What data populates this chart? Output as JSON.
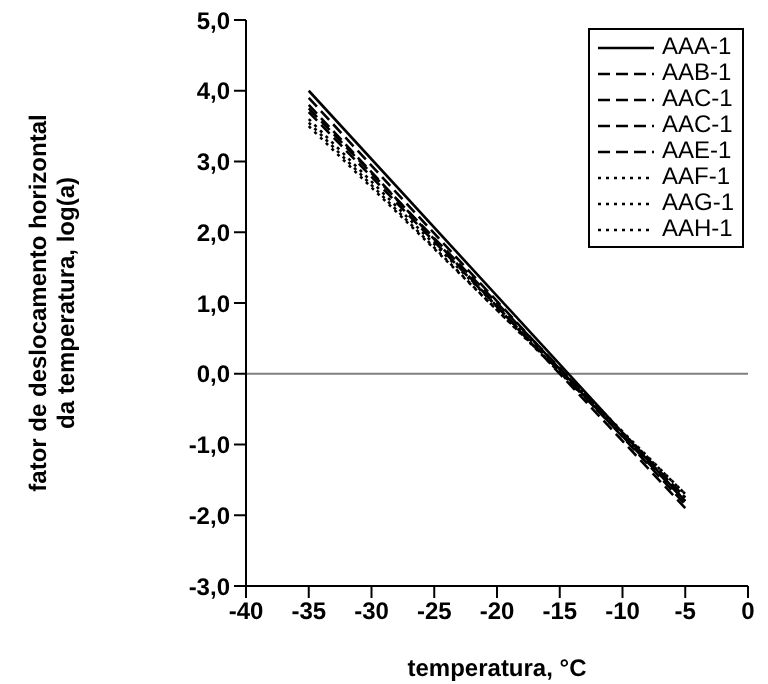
{
  "chart_data": {
    "type": "line",
    "xlabel": "temperatura, °C",
    "ylabel": "fator de deslocamento horizontal\nda temperatura, log(a)",
    "x": [
      -35,
      -5
    ],
    "series": [
      {
        "name": "AAA-1",
        "color": "#000000",
        "line_style": "solid",
        "values": [
          4.0,
          -1.8
        ]
      },
      {
        "name": "AAB-1",
        "color": "#000000",
        "line_style": "dashed",
        "values": [
          3.9,
          -1.85
        ]
      },
      {
        "name": "AAC-1",
        "color": "#000000",
        "line_style": "dashed",
        "values": [
          3.8,
          -1.9
        ]
      },
      {
        "name": "AAC-1",
        "color": "#000000",
        "line_style": "dashed",
        "values": [
          3.75,
          -1.75
        ]
      },
      {
        "name": "AAE-1",
        "color": "#000000",
        "line_style": "dashed",
        "values": [
          3.7,
          -1.8
        ]
      },
      {
        "name": "AAF-1",
        "color": "#000000",
        "line_style": "dotted",
        "values": [
          3.6,
          -1.7
        ]
      },
      {
        "name": "AAG-1",
        "color": "#000000",
        "line_style": "dotted",
        "values": [
          3.55,
          -1.75
        ]
      },
      {
        "name": "AAH-1",
        "color": "#000000",
        "line_style": "dotted",
        "values": [
          3.5,
          -1.7
        ]
      }
    ],
    "xlim": [
      -40,
      0
    ],
    "xticks": [
      -40,
      -35,
      -30,
      -25,
      -20,
      -15,
      -10,
      -5,
      0
    ],
    "ylim": [
      -3,
      5
    ],
    "yticks": [
      {
        "value": -3,
        "label": "-3,0"
      },
      {
        "value": -2,
        "label": "-2,0"
      },
      {
        "value": -1,
        "label": "-1,0"
      },
      {
        "value": 0,
        "label": "0,0"
      },
      {
        "value": 1,
        "label": "1,0"
      },
      {
        "value": 2,
        "label": "2,0"
      },
      {
        "value": 3,
        "label": "3,0"
      },
      {
        "value": 4,
        "label": "4,0"
      },
      {
        "value": 5,
        "label": "5,0"
      }
    ],
    "ref_lines": [
      {
        "axis": "y",
        "value": 0,
        "color": "#808080"
      }
    ],
    "grid": false,
    "legend": "top right",
    "marker": "none"
  }
}
